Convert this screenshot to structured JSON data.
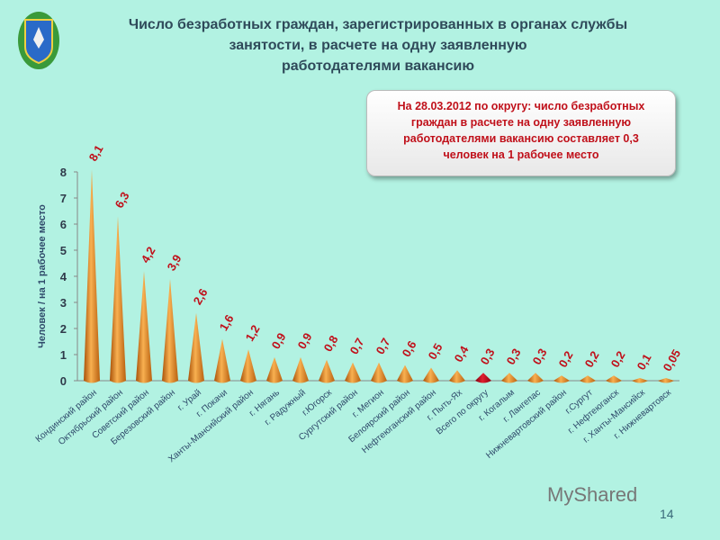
{
  "title": [
    "Число безработных  граждан, зарегистрированных в органах службы",
    "занятости, в расчете на одну заявленную",
    "работодателями вакансию"
  ],
  "callout": [
    "На 28.03.2012 по округу: число безработных",
    "граждан в расчете на одну заявленную",
    "работодателями вакансию составляет 0,3",
    "человек на 1 рабочее место"
  ],
  "page_number": "14",
  "watermark": "MyShared",
  "colors": {
    "background": "#b2f2e2",
    "bar": "#e8881e",
    "highlight_bar": "#c01020",
    "label": "#c0101a",
    "axis_text": "#2f4a6a"
  },
  "chart_data": {
    "type": "bar",
    "ylabel": "Человек / на 1 рабочее место",
    "ylim": [
      0,
      8
    ],
    "yticks": [
      0,
      1,
      2,
      3,
      4,
      5,
      6,
      7,
      8
    ],
    "grid": false,
    "categories": [
      "Кондинский район",
      "Октябрьский район",
      "Советский район",
      "Березовский район",
      "г. Урай",
      "г. Покачи",
      "Ханты-Мансийский район",
      "г. Нягань",
      "г. Радужный",
      "г.Югорск",
      "Сургутский район",
      "г. Мегион",
      "Белоярский район",
      "Нефтеюганский район",
      "г. Пыть-Ях",
      "Всего по округу",
      "г. Когалым",
      "г. Лангепас",
      "Нижневартовский район",
      "г.Сургут",
      "г. Нефтеюганск",
      "г. Ханты-Мансийск",
      "г. Нижневартовск"
    ],
    "values": [
      8.1,
      6.3,
      4.2,
      3.9,
      2.6,
      1.6,
      1.2,
      0.9,
      0.9,
      0.8,
      0.7,
      0.7,
      0.6,
      0.5,
      0.4,
      0.3,
      0.3,
      0.3,
      0.2,
      0.2,
      0.2,
      0.1,
      0.05
    ],
    "data_labels": [
      "8,1",
      "6,3",
      "4,2",
      "3,9",
      "2,6",
      "1,6",
      "1,2",
      "0,9",
      "0,9",
      "0,8",
      "0,7",
      "0,7",
      "0,6",
      "0,5",
      "0,4",
      "0,3",
      "0,3",
      "0,3",
      "0,2",
      "0,2",
      "0,2",
      "0,1",
      "0,05"
    ],
    "highlight_category": "Всего по округу"
  }
}
